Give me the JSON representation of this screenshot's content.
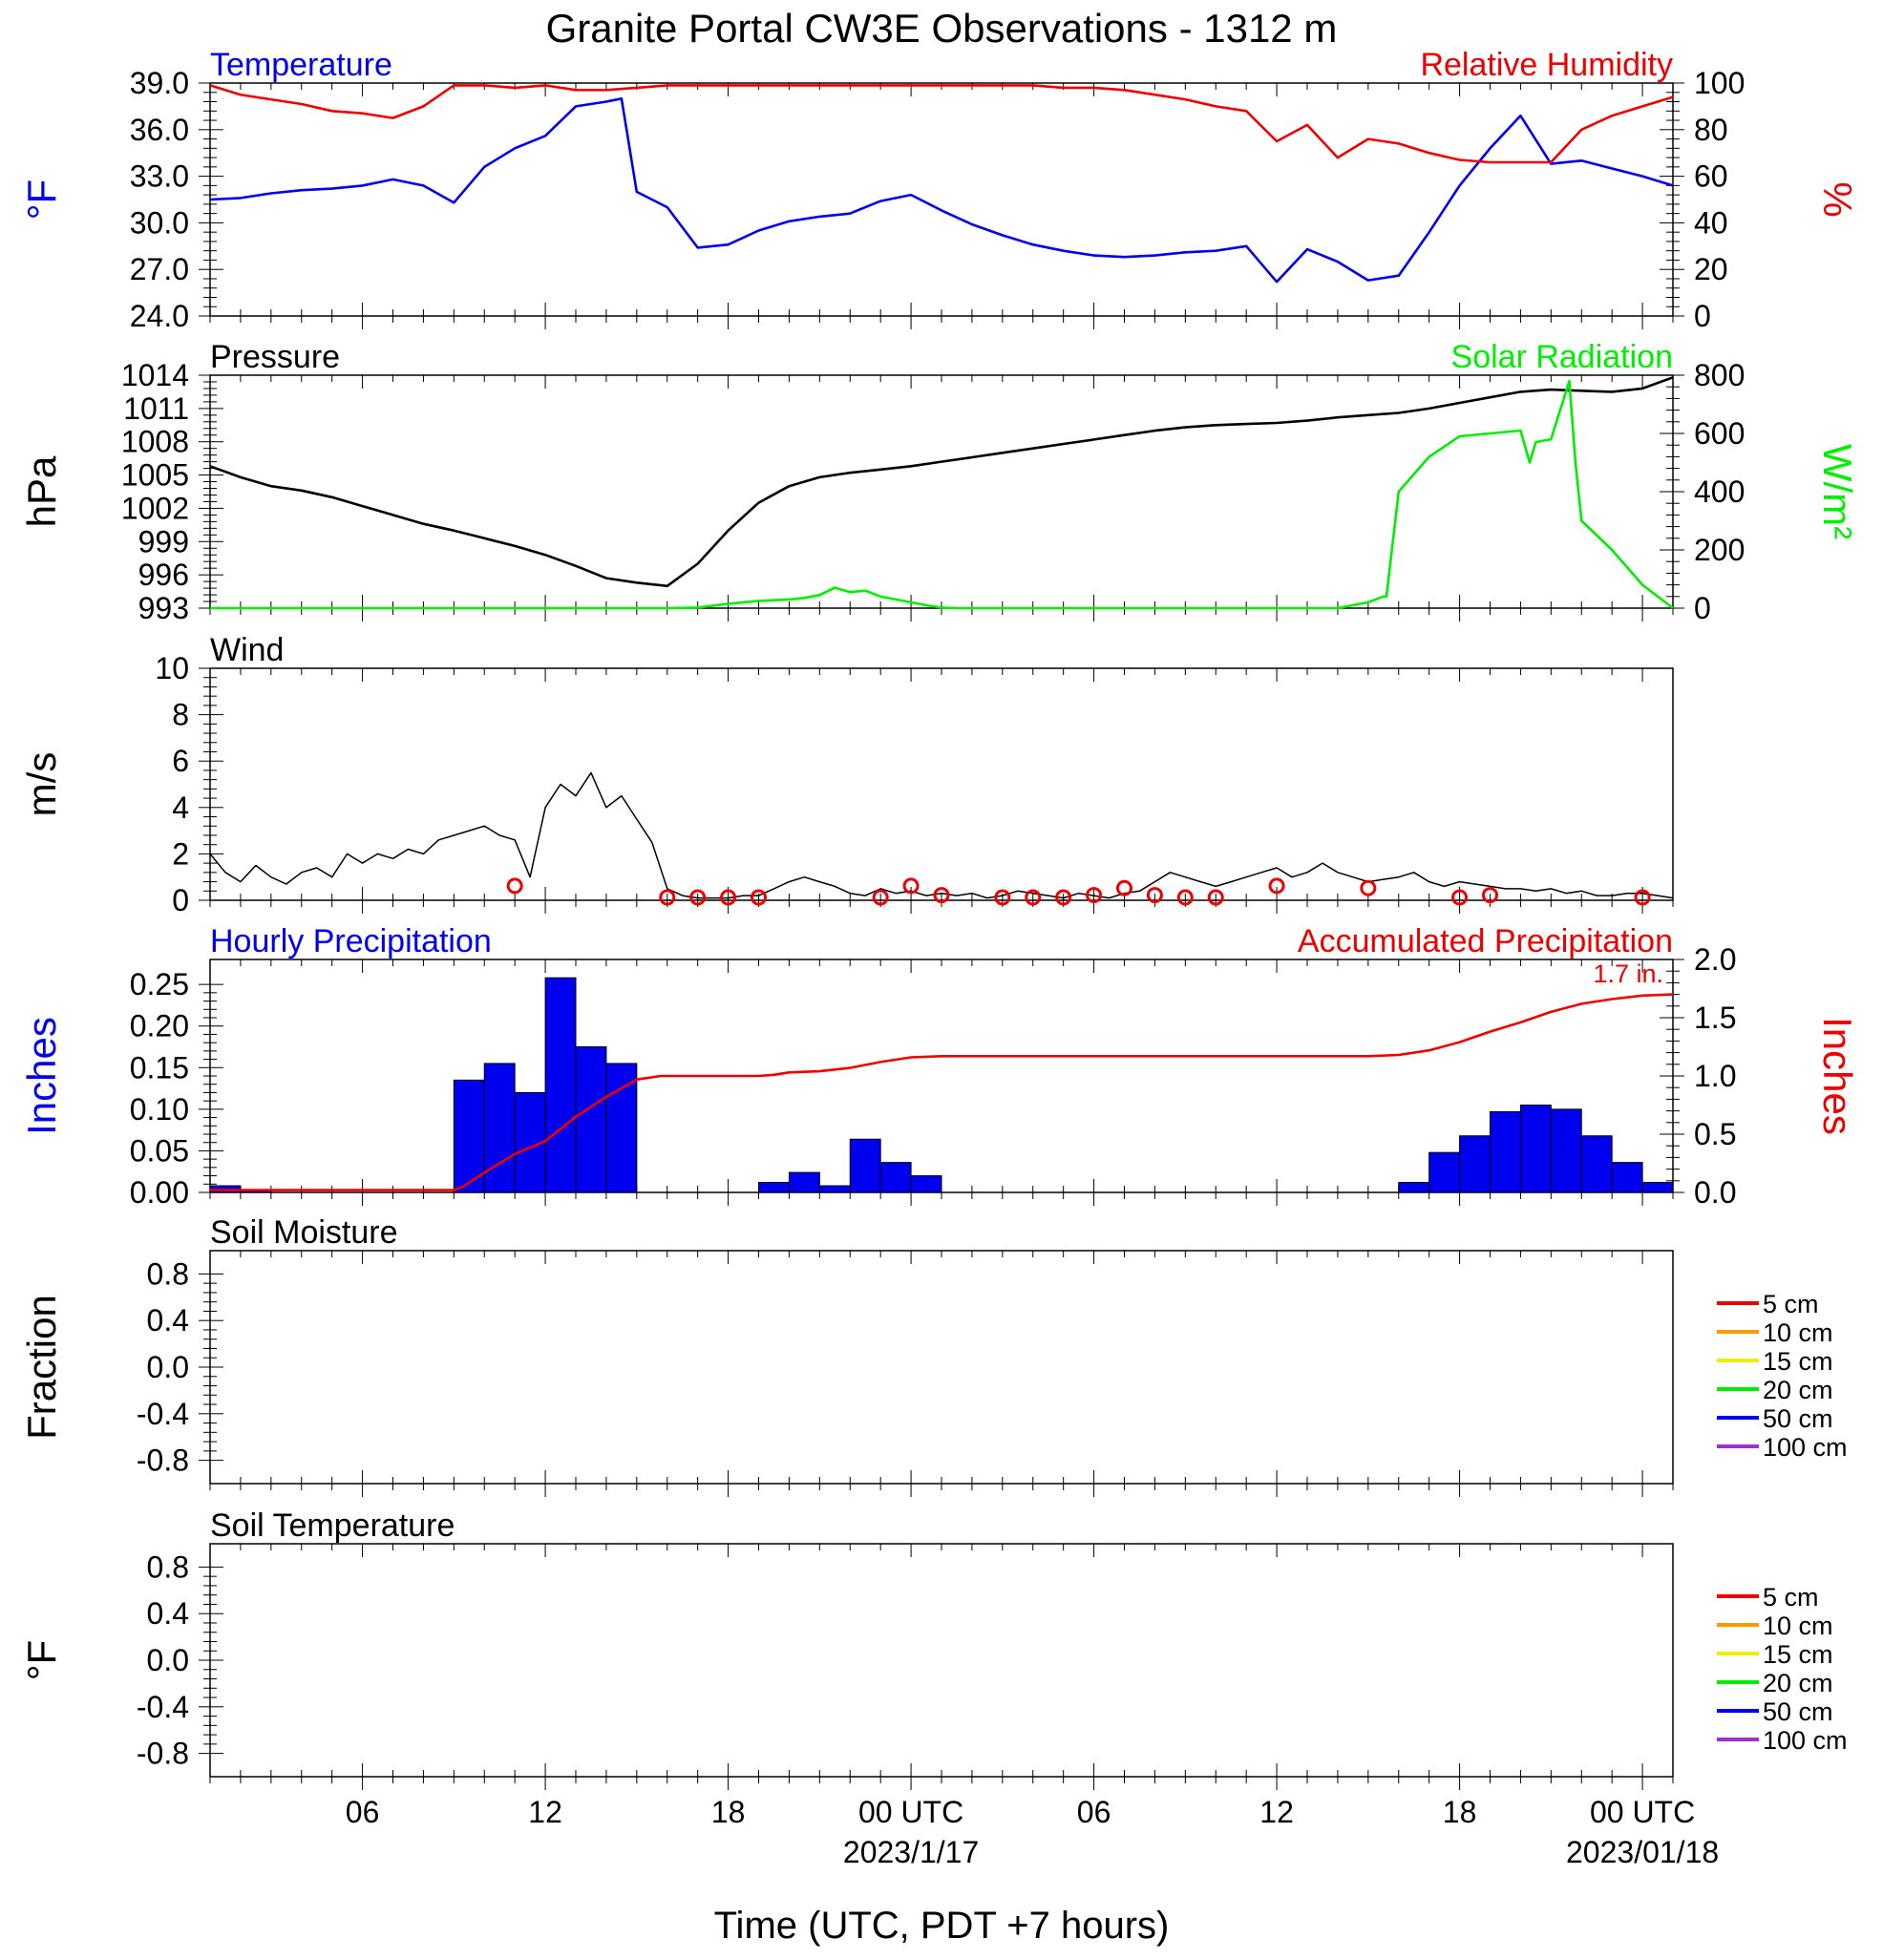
{
  "title": "Granite Portal CW3E Observations - 1312 m",
  "xlabel": "Time (UTC, PDT +7 hours)",
  "colors": {
    "temperature": "#0000ee",
    "humidity": "#ee0000",
    "pressure": "#000000",
    "solar": "#00ee00",
    "wind": "#000000",
    "barb": "#ee0000",
    "hourly_bar": "#0000ee",
    "accum": "#ee0000"
  },
  "x_axis": {
    "range_hours": [
      0,
      48
    ],
    "ticks": [
      {
        "hour": 5,
        "label": "06",
        "sub": ""
      },
      {
        "hour": 11,
        "label": "12",
        "sub": ""
      },
      {
        "hour": 17,
        "label": "18",
        "sub": ""
      },
      {
        "hour": 23,
        "label": "00 UTC",
        "sub": "2023/1/17"
      },
      {
        "hour": 29,
        "label": "06",
        "sub": ""
      },
      {
        "hour": 35,
        "label": "12",
        "sub": ""
      },
      {
        "hour": 41,
        "label": "18",
        "sub": ""
      },
      {
        "hour": 47,
        "label": "00 UTC",
        "sub": "2023/01/18"
      }
    ]
  },
  "chart_data": [
    {
      "panel": "temperature_humidity",
      "type": "line",
      "left_title": "Temperature",
      "right_title": "Relative Humidity",
      "ylabel_left": "°F",
      "ylabel_right": "%",
      "ylim_left": [
        24,
        39
      ],
      "yticks_left": [
        "24.0",
        "27.0",
        "30.0",
        "33.0",
        "36.0",
        "39.0"
      ],
      "ylim_right": [
        0,
        100
      ],
      "yticks_right": [
        "0",
        "20",
        "40",
        "60",
        "80",
        "100"
      ],
      "series": [
        {
          "name": "Temperature",
          "axis": "left",
          "x": [
            0,
            1,
            2,
            3,
            4,
            5,
            6,
            7,
            8,
            9,
            10,
            11,
            12,
            13,
            13.5,
            14,
            15,
            16,
            17,
            18,
            19,
            20,
            21,
            22,
            23,
            24,
            25,
            26,
            27,
            28,
            29,
            30,
            31,
            32,
            33,
            34,
            35,
            36,
            37,
            38,
            39,
            40,
            41,
            42,
            43,
            44,
            45,
            46,
            47,
            48
          ],
          "y": [
            31.5,
            31.6,
            31.9,
            32.1,
            32.2,
            32.4,
            32.8,
            32.4,
            31.3,
            33.6,
            34.8,
            35.6,
            37.5,
            37.8,
            38.0,
            32.0,
            31.0,
            28.4,
            28.6,
            29.5,
            30.1,
            30.4,
            30.6,
            31.4,
            31.8,
            30.8,
            29.9,
            29.2,
            28.6,
            28.2,
            27.9,
            27.8,
            27.9,
            28.1,
            28.2,
            28.5,
            26.2,
            28.3,
            27.5,
            26.3,
            26.6,
            29.4,
            32.4,
            34.8,
            36.9,
            33.8,
            34.0,
            33.5,
            33.0,
            32.4
          ]
        },
        {
          "name": "Relative Humidity",
          "axis": "right",
          "x": [
            0,
            1,
            2,
            3,
            4,
            5,
            6,
            7,
            8,
            9,
            10,
            11,
            12,
            13,
            14,
            15,
            16,
            17,
            18,
            19,
            20,
            21,
            22,
            23,
            24,
            25,
            26,
            27,
            28,
            29,
            30,
            31,
            32,
            33,
            34,
            35,
            36,
            37,
            38,
            39,
            40,
            41,
            42,
            43,
            44,
            45,
            46,
            47,
            48
          ],
          "y": [
            99,
            95,
            93,
            91,
            88,
            87,
            85,
            90,
            99,
            99,
            98,
            99,
            97,
            97,
            98,
            99,
            99,
            99,
            99,
            99,
            99,
            99,
            99,
            99,
            99,
            99,
            99,
            99,
            98,
            98,
            97,
            95,
            93,
            90,
            88,
            75,
            82,
            68,
            76,
            74,
            70,
            67,
            66,
            66,
            66,
            80,
            86,
            90,
            94
          ]
        }
      ]
    },
    {
      "panel": "pressure_solar",
      "type": "line",
      "left_title": "Pressure",
      "right_title": "Solar Radiation",
      "ylabel_left": "hPa",
      "ylabel_right": "W/m²",
      "ylim_left": [
        993,
        1014
      ],
      "yticks_left": [
        "993",
        "996",
        "999",
        "1002",
        "1005",
        "1008",
        "1011",
        "1014"
      ],
      "ylim_right": [
        0,
        800
      ],
      "yticks_right": [
        "0",
        "200",
        "400",
        "600",
        "800"
      ],
      "series": [
        {
          "name": "Pressure",
          "axis": "left",
          "x": [
            0,
            1,
            2,
            3,
            4,
            5,
            6,
            7,
            8,
            9,
            10,
            11,
            12,
            13,
            14,
            15,
            16,
            17,
            18,
            19,
            20,
            21,
            22,
            23,
            24,
            25,
            26,
            27,
            28,
            29,
            30,
            31,
            32,
            33,
            34,
            35,
            36,
            37,
            38,
            39,
            40,
            41,
            42,
            43,
            44,
            45,
            46,
            47,
            48
          ],
          "y": [
            1005.8,
            1004.8,
            1004.0,
            1003.6,
            1003.0,
            1002.2,
            1001.4,
            1000.6,
            1000.0,
            999.3,
            998.6,
            997.8,
            996.8,
            995.7,
            995.3,
            995.0,
            997.0,
            1000.0,
            1002.5,
            1004.0,
            1004.8,
            1005.2,
            1005.5,
            1005.8,
            1006.2,
            1006.6,
            1007.0,
            1007.4,
            1007.8,
            1008.2,
            1008.6,
            1009.0,
            1009.3,
            1009.5,
            1009.6,
            1009.7,
            1009.9,
            1010.2,
            1010.4,
            1010.6,
            1011.0,
            1011.5,
            1012.0,
            1012.5,
            1012.7,
            1012.6,
            1012.5,
            1012.8,
            1013.8
          ]
        },
        {
          "name": "Solar Radiation",
          "axis": "right",
          "x": [
            0,
            15,
            16,
            17,
            18,
            19,
            19.5,
            20,
            20.5,
            21,
            21.5,
            22,
            22.5,
            23,
            23.5,
            24,
            24.5,
            25,
            35,
            36,
            37,
            38,
            38.5,
            38.6,
            39,
            40,
            41,
            42,
            43,
            43.3,
            43.5,
            44,
            44.6,
            44.8,
            45,
            46,
            47,
            48
          ],
          "y": [
            0,
            0,
            2,
            15,
            25,
            30,
            35,
            45,
            70,
            55,
            60,
            40,
            30,
            20,
            10,
            2,
            0,
            0,
            0,
            0,
            0,
            20,
            40,
            40,
            400,
            520,
            590,
            600,
            610,
            500,
            570,
            580,
            780,
            500,
            300,
            200,
            80,
            0
          ]
        }
      ]
    },
    {
      "panel": "wind",
      "type": "line",
      "left_title": "Wind",
      "ylabel_left": "m/s",
      "ylim_left": [
        0,
        10
      ],
      "yticks_left": [
        "0",
        "2",
        "4",
        "6",
        "8",
        "10"
      ],
      "series": [
        {
          "name": "Wind",
          "axis": "left",
          "x": [
            0,
            0.5,
            1,
            1.5,
            2,
            2.5,
            3,
            3.5,
            4,
            4.5,
            5,
            5.5,
            6,
            6.5,
            7,
            7.5,
            8,
            8.5,
            9,
            9.5,
            10,
            10.5,
            11,
            11.5,
            12,
            12.5,
            13,
            13.5,
            14,
            14.5,
            15,
            15.5,
            16,
            16.5,
            17,
            17.5,
            18,
            18.5,
            19,
            19.5,
            20,
            20.5,
            21,
            21.5,
            22,
            22.5,
            23,
            23.5,
            24,
            24.5,
            25,
            25.5,
            26,
            26.5,
            27,
            27.5,
            28,
            28.5,
            29,
            29.5,
            30,
            30.5,
            31,
            31.5,
            32,
            32.5,
            33,
            33.5,
            34,
            34.5,
            35,
            35.5,
            36,
            36.5,
            37,
            37.5,
            38,
            38.5,
            39,
            39.5,
            40,
            40.5,
            41,
            41.5,
            42,
            42.5,
            43,
            43.5,
            44,
            44.5,
            45,
            45.5,
            46,
            46.5,
            47,
            47.5,
            48
          ],
          "y": [
            2.0,
            1.2,
            0.8,
            1.5,
            1.0,
            0.7,
            1.2,
            1.4,
            1.0,
            2.0,
            1.6,
            2.0,
            1.8,
            2.2,
            2.0,
            2.6,
            2.8,
            3.0,
            3.2,
            2.8,
            2.6,
            1.0,
            4.0,
            5.0,
            4.5,
            5.5,
            4.0,
            4.5,
            3.5,
            2.5,
            0.5,
            0.2,
            0.1,
            0.1,
            0.1,
            0.2,
            0.2,
            0.5,
            0.8,
            1.0,
            0.8,
            0.6,
            0.3,
            0.2,
            0.5,
            0.3,
            0.4,
            0.2,
            0.3,
            0.2,
            0.3,
            0.1,
            0.2,
            0.4,
            0.3,
            0.2,
            0.1,
            0.3,
            0.2,
            0.1,
            0.3,
            0.4,
            0.8,
            1.2,
            1.0,
            0.8,
            0.6,
            0.8,
            1.0,
            1.2,
            1.4,
            1.0,
            1.2,
            1.6,
            1.2,
            1.0,
            0.8,
            0.9,
            1.0,
            1.2,
            0.8,
            0.6,
            0.8,
            0.7,
            0.6,
            0.5,
            0.5,
            0.4,
            0.5,
            0.3,
            0.4,
            0.2,
            0.2,
            0.3,
            0.3,
            0.2,
            0.1
          ]
        },
        {
          "name": "Calm markers",
          "axis": "left",
          "x": [
            10,
            15,
            16,
            17,
            18,
            22,
            23,
            24,
            26,
            27,
            28,
            29,
            30,
            31,
            32,
            33,
            35,
            38,
            41,
            42,
            47
          ],
          "y": [
            0.5,
            0,
            0,
            0,
            0,
            0,
            0.5,
            0.1,
            0,
            0,
            0,
            0.1,
            0.4,
            0.1,
            0,
            0,
            0.5,
            0.4,
            0,
            0.1,
            0
          ]
        }
      ]
    },
    {
      "panel": "precipitation",
      "type": "bar",
      "left_title": "Hourly Precipitation",
      "right_title": "Accumulated Precipitation",
      "ylabel_left": "Inches",
      "ylabel_right": "Inches",
      "ylim_left": [
        0,
        0.28
      ],
      "yticks_left": [
        "0.00",
        "0.05",
        "0.10",
        "0.15",
        "0.20",
        "0.25"
      ],
      "ylim_right": [
        0,
        2.0
      ],
      "yticks_right": [
        "0.0",
        "0.5",
        "1.0",
        "1.5",
        "2.0"
      ],
      "annotation": "1.7 in.",
      "bars": {
        "name": "Hourly Precipitation",
        "x": [
          0,
          1,
          8,
          9,
          10,
          11,
          12,
          13,
          18,
          19,
          20,
          21,
          22,
          23,
          39,
          40,
          41,
          42,
          43,
          44,
          45,
          46,
          47
        ],
        "values": [
          0.008,
          0.003,
          0.135,
          0.155,
          0.12,
          0.258,
          0.175,
          0.155,
          0.012,
          0.024,
          0.008,
          0.064,
          0.036,
          0.02,
          0.012,
          0.048,
          0.068,
          0.097,
          0.105,
          0.1,
          0.068,
          0.036,
          0.012
        ]
      },
      "series": [
        {
          "name": "Accumulated Precipitation",
          "axis": "right",
          "x": [
            0,
            1,
            8,
            8.3,
            9,
            10,
            11,
            12,
            13,
            14,
            14.8,
            18,
            18.5,
            19,
            20,
            21,
            22,
            23,
            24,
            25,
            26,
            27,
            38,
            39,
            40,
            41,
            42,
            43,
            44,
            45,
            46,
            47,
            48
          ],
          "y": [
            0.02,
            0.02,
            0.02,
            0.05,
            0.17,
            0.33,
            0.44,
            0.65,
            0.82,
            0.97,
            1.0,
            1.0,
            1.01,
            1.03,
            1.04,
            1.07,
            1.12,
            1.16,
            1.17,
            1.17,
            1.17,
            1.17,
            1.17,
            1.18,
            1.22,
            1.29,
            1.38,
            1.46,
            1.55,
            1.62,
            1.66,
            1.69,
            1.7
          ]
        }
      ]
    },
    {
      "panel": "soil_moisture",
      "type": "line",
      "left_title": "Soil Moisture",
      "ylabel_left": "Fraction",
      "ylim_left": [
        -1,
        1
      ],
      "yticks_left": [
        "-0.8",
        "-0.4",
        "0.0",
        "0.4",
        "0.8"
      ],
      "legend": [
        {
          "name": "5 cm",
          "color": "#ee0000"
        },
        {
          "name": "10 cm",
          "color": "#ff9900"
        },
        {
          "name": "15 cm",
          "color": "#eeee00"
        },
        {
          "name": "20 cm",
          "color": "#00ee00"
        },
        {
          "name": "50 cm",
          "color": "#0000ee"
        },
        {
          "name": "100 cm",
          "color": "#9933cc"
        }
      ],
      "series": []
    },
    {
      "panel": "soil_temperature",
      "type": "line",
      "left_title": "Soil Temperature",
      "ylabel_left": "°F",
      "ylim_left": [
        -1,
        1
      ],
      "yticks_left": [
        "-0.8",
        "-0.4",
        "0.0",
        "0.4",
        "0.8"
      ],
      "legend": [
        {
          "name": "5 cm",
          "color": "#ee0000"
        },
        {
          "name": "10 cm",
          "color": "#ff9900"
        },
        {
          "name": "15 cm",
          "color": "#eeee00"
        },
        {
          "name": "20 cm",
          "color": "#00ee00"
        },
        {
          "name": "50 cm",
          "color": "#0000ee"
        },
        {
          "name": "100 cm",
          "color": "#9933cc"
        }
      ],
      "series": []
    }
  ]
}
